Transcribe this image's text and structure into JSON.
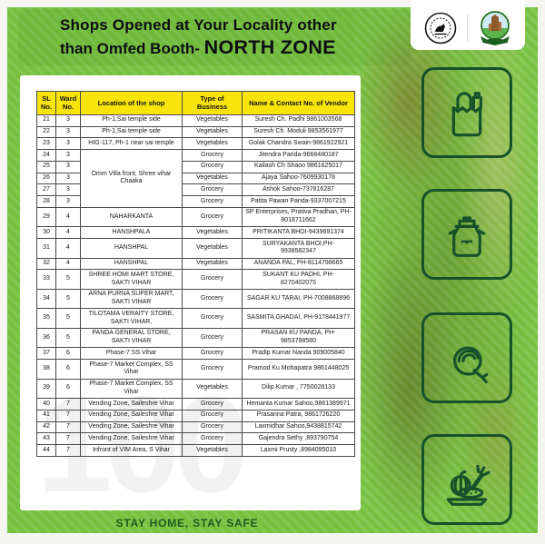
{
  "header": {
    "title_line1": "Shops Opened at Your Locality other",
    "title_line2": "than Omfed Booth-",
    "zone": "NORTH ZONE"
  },
  "logos": {
    "left": "government-seal",
    "right": "municipal-corporation-logo"
  },
  "side_icons": [
    {
      "name": "grocery-bag-icon"
    },
    {
      "name": "milk-can-icon"
    },
    {
      "name": "meat-icon"
    },
    {
      "name": "vegetable-plate-icon"
    }
  ],
  "footer": {
    "text": "STAY HOME, STAY SAFE"
  },
  "colors": {
    "background_green": "#76c13f",
    "table_header_yellow": "#f8e409",
    "icon_dark_green": "#17512a",
    "footer_text_green": "#1b5e20",
    "table_border": "#4a4a4a"
  },
  "table": {
    "headers": [
      "SL No.",
      "Ward No.",
      "Location of the shop",
      "Type of Business",
      "Name & Contact No. of Vendor"
    ],
    "rows": [
      {
        "sl": "21",
        "ward": "3",
        "location": "Ph-1,Sai temple side",
        "type": "Vegetables",
        "vendor": "Suresh Ch. Padhi 9861003568"
      },
      {
        "sl": "22",
        "ward": "3",
        "location": "Ph-1,Sai temple side",
        "type": "Vegetables",
        "vendor": "Suresh Ch. Moduli 9853561977"
      },
      {
        "sl": "23",
        "ward": "3",
        "location": "HIG-117, Ph-1 near sai temple",
        "type": "Vegetables",
        "vendor": "Golak Chandra Swain-9861922921"
      },
      {
        "sl": "24",
        "ward": "3",
        "location": "Omm Villa front, Shree vihar Chaaka",
        "location_rowspan": 5,
        "type": "Grocery",
        "vendor": "Jitendra Parida-9668480187"
      },
      {
        "sl": "25",
        "ward": "3",
        "location": null,
        "type": "Grocery",
        "vendor": "Kailash Ch Shaoo 9861625017"
      },
      {
        "sl": "26",
        "ward": "3",
        "location": null,
        "type": "Vegetables",
        "vendor": "Ajaya Sahoo-7609930178"
      },
      {
        "sl": "27",
        "ward": "3",
        "location": null,
        "type": "Grocery",
        "vendor": "Ashok Sahoo-737816287"
      },
      {
        "sl": "28",
        "ward": "3",
        "location": null,
        "type": "Grocery",
        "vendor": "Patita Pawan Panda-9337007215"
      },
      {
        "sl": "29",
        "ward": "4",
        "location": "NAHARKANTA",
        "type": "Grocery",
        "vendor": "SP Enterprises, Prativa Pradhan, PH-8018711662"
      },
      {
        "sl": "30",
        "ward": "4",
        "location": "HANSHPALA",
        "type": "Vegetables",
        "vendor": "PRITIKANTA BHOI-9439691374"
      },
      {
        "sl": "31",
        "ward": "4",
        "location": "HANSHPAL",
        "type": "Vegetables",
        "vendor": "SURYAKANTA BHOI,PH-9938582347"
      },
      {
        "sl": "32",
        "ward": "4",
        "location": "HANSHPAL",
        "type": "Vegetables",
        "vendor": "ANANDA PAL, PH-8114798665"
      },
      {
        "sl": "33",
        "ward": "5",
        "location": "SHREE HOMI MART STORE, SAKTI VIHAR",
        "type": "Grocery",
        "vendor": "SUKANT KU PADHI, PH-8270402075"
      },
      {
        "sl": "34",
        "ward": "5",
        "location": "ARNA PURNA SUPER MART, SAKTI VIHAR",
        "type": "Grocery",
        "vendor": "SAGAR KU TARAI, PH-7008868896"
      },
      {
        "sl": "35",
        "ward": "5",
        "location": "TILOTAMA VERAITY STORE, SAKTI VIHAR,",
        "type": "Grocery",
        "vendor": "SASMITA GHADAI, PH-9178441977"
      },
      {
        "sl": "36",
        "ward": "5",
        "location": "PANDA GENERAL STORE, SAKTI VIHAR",
        "type": "Grocery",
        "vendor": "PRASAN KU PANDA, PH-9853798580"
      },
      {
        "sl": "37",
        "ward": "6",
        "location": "Phase-7 SS Vihar",
        "type": "Grocery",
        "vendor": "Pradip Kumar Nanda 909005840"
      },
      {
        "sl": "38",
        "ward": "6",
        "location": "Phase-7 Market Complex, SS Vihar",
        "type": "Grocery",
        "vendor": "Pramod Ku Mohapatra 9861448025"
      },
      {
        "sl": "39",
        "ward": "6",
        "location": "Phase-7 Market Complex, SS Vihar",
        "type": "Vegetables",
        "vendor": "Dilip Kumar , 7750028133"
      },
      {
        "sl": "40",
        "ward": "7",
        "location": "Vending Zone, Saileshre Vihar",
        "type": "Grocery",
        "vendor": "Hemanta Kumar Sahoo,9861389971"
      },
      {
        "sl": "41",
        "ward": "7",
        "location": "Vending Zone, Saileshre Vihar",
        "type": "Grocery",
        "vendor": "Prasanna Patra, 9861726220"
      },
      {
        "sl": "42",
        "ward": "7",
        "location": "Vending Zone, Saileshre Vihar",
        "type": "Grocery",
        "vendor": "Laxmidhar Sahoo,9438815742"
      },
      {
        "sl": "43",
        "ward": "7",
        "location": "Vending Zone, Saileshre Vihar",
        "type": "Grocery",
        "vendor": "Gajendra Sethy ,893790754"
      },
      {
        "sl": "44",
        "ward": "7",
        "location": "Infront of VIM Area, S Vihar",
        "type": "Vegetables",
        "vendor": "Laxmi Prusty ,8984095010"
      }
    ],
    "watermark": "100"
  }
}
